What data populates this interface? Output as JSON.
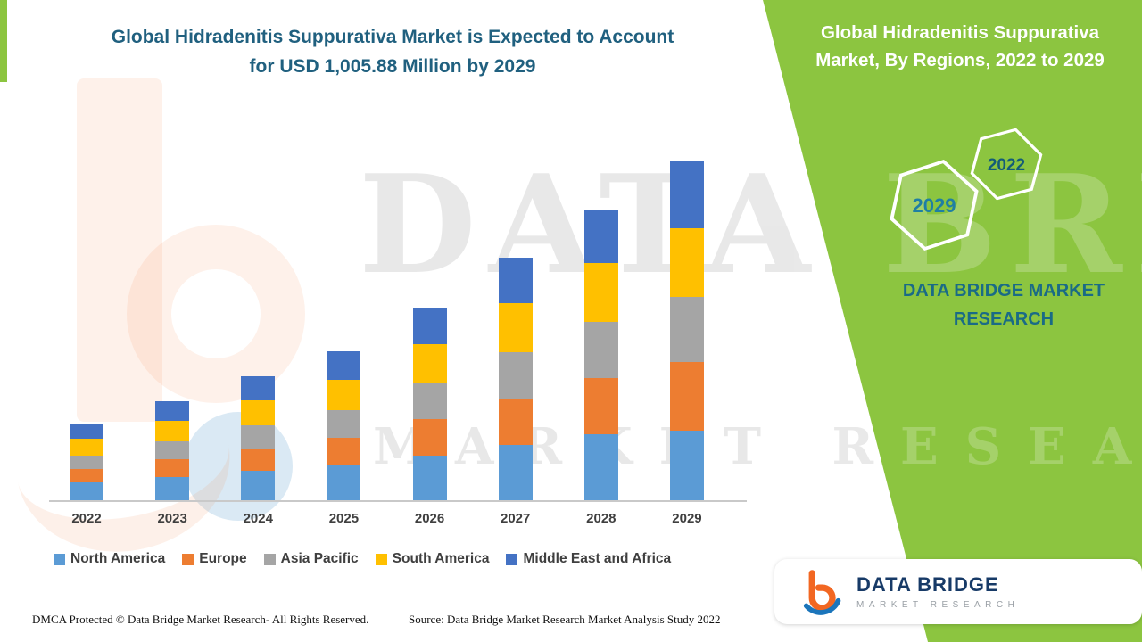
{
  "header": {
    "title_line1": "Global Hidradenitis Suppurativa Market is Expected to Account",
    "title_line2": "for USD 1,005.88 Million by 2029"
  },
  "side_panel": {
    "title_line1": "Global Hidradenitis Suppurativa",
    "title_line2": "Market, By Regions, 2022 to 2029",
    "hexagons": [
      {
        "label": "2029",
        "text_color": "#1F7FA3"
      },
      {
        "label": "2022",
        "text_color": "#135C78"
      }
    ],
    "brand_line1": "DATA BRIDGE MARKET",
    "brand_line2": "RESEARCH"
  },
  "watermark": {
    "line1": "DATA BRIDGE",
    "line2": "MARKET RESEARCH"
  },
  "logo_card": {
    "name": "DATA BRIDGE",
    "subtitle": "MARKET RESEARCH"
  },
  "footer": {
    "dmca": "DMCA Protected © Data Bridge Market Research- All Rights Reserved.",
    "source": "Source: Data Bridge Market Research Market Analysis Study 2022"
  },
  "colors": {
    "accent_green": "#8CC540",
    "title_teal": "#20607F",
    "brand_orange": "#F26722",
    "brand_blue": "#1B75BB"
  },
  "chart_data": {
    "type": "bar",
    "subtype": "stacked-vertical",
    "title": "Global Hidradenitis Suppurativa Market is Expected to Account for USD 1,005.88 Million by 2029",
    "unit": "USD Million",
    "categories": [
      "2022",
      "2023",
      "2024",
      "2025",
      "2026",
      "2027",
      "2028",
      "2029"
    ],
    "series": [
      {
        "name": "North America",
        "color": "#5B9BD5",
        "values": [
          53,
          69,
          87,
          103,
          132,
          164,
          196,
          206
        ]
      },
      {
        "name": "Europe",
        "color": "#ED7D31",
        "values": [
          40,
          53,
          66,
          82,
          108,
          138,
          167,
          204
        ]
      },
      {
        "name": "Asia Pacific",
        "color": "#A5A5A5",
        "values": [
          40,
          53,
          69,
          82,
          108,
          138,
          167,
          193
        ]
      },
      {
        "name": "South America",
        "color": "#FFC000",
        "values": [
          50,
          61,
          74,
          90,
          116,
          146,
          175,
          204
        ]
      },
      {
        "name": "Middle East and Africa",
        "color": "#4472C4",
        "values": [
          42,
          58,
          71,
          85,
          108,
          135,
          159,
          198.88
        ]
      }
    ],
    "totals_estimated": [
      225,
      294,
      367,
      442,
      572,
      721,
      864,
      1005.88
    ],
    "ylim": [
      0,
      1005.88
    ],
    "xlabel": "",
    "ylabel": "",
    "grid": false,
    "y_axis_ticks": false,
    "legend_position": "bottom"
  }
}
